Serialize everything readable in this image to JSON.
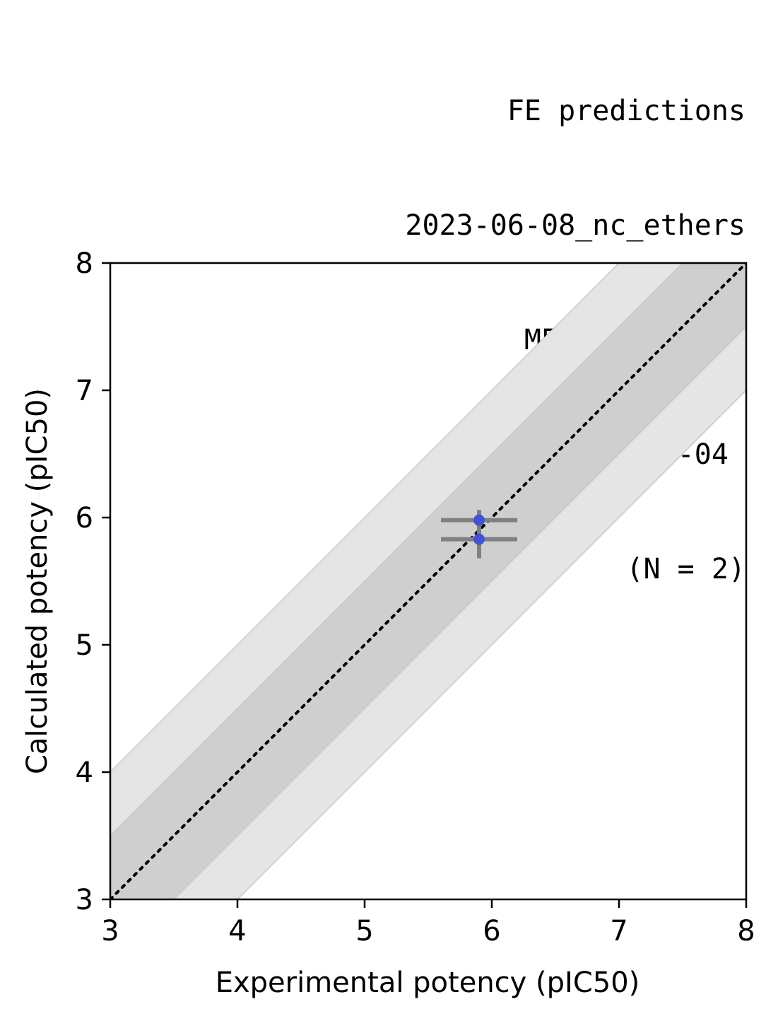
{
  "chart_data": {
    "type": "scatter",
    "title_lines": [
      "FE predictions",
      "2023-06-08_nc_ethers",
      "MERS-CoV-Mpro",
      "2023-10-04 ",
      "(N = 2)"
    ],
    "xlabel": "Experimental potency (pIC50)",
    "ylabel": "Calculated potency (pIC50)",
    "xlim": [
      3,
      8
    ],
    "ylim": [
      3,
      8
    ],
    "xticks": [
      "3",
      "4",
      "5",
      "6",
      "7",
      "8"
    ],
    "yticks": [
      "3",
      "4",
      "5",
      "6",
      "7",
      "8"
    ],
    "grid": false,
    "bands": [
      {
        "offset": 1.0,
        "color": "#e5e5e5"
      },
      {
        "offset": 0.5,
        "color": "#cfcfcf"
      }
    ],
    "identity_line": {
      "style": "dotted",
      "color": "#000000"
    },
    "points": [
      {
        "x": 5.9,
        "y": 5.98,
        "xerr": 0.3,
        "yerr": 0.08
      },
      {
        "x": 5.9,
        "y": 5.83,
        "xerr": 0.3,
        "yerr": 0.15
      }
    ],
    "point_color": "#4052d6",
    "errorbar_color": "#808080"
  }
}
